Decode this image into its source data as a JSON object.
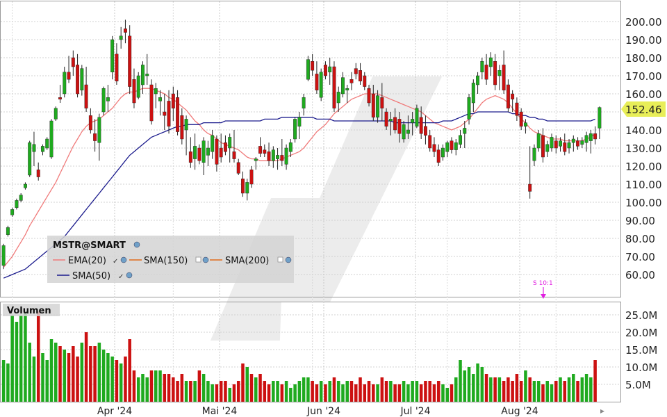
{
  "chart_data": [
    {
      "type": "candlestick",
      "title": "MSTR@SMART",
      "xlabel": "",
      "ylabel": "",
      "ylim": [
        51,
        205
      ],
      "y_ticks": [
        "200.00",
        "190.00",
        "180.00",
        "170.00",
        "160.00",
        "150.00",
        "140.00",
        "130.00",
        "120.00",
        "110.00",
        "100.00",
        "90.00",
        "80.00",
        "70.00",
        "60.00"
      ],
      "x_ticks": [
        "Apr '24",
        "Mai '24",
        "Jun '24",
        "Jul '24",
        "Aug '24"
      ],
      "last_price": "152.46",
      "last_price_value": 152.46,
      "colors": {
        "up": "#1faa1f",
        "down": "#cc1111",
        "ema20": "#f07a7a",
        "sma50": "#1a1a8c",
        "sma150": "#e06a1a",
        "sma200": "#e06a1a",
        "last_price_bg": "#e8ee58"
      },
      "legend": [
        {
          "label": "EMA(20)"
        },
        {
          "label": "SMA(150)"
        },
        {
          "label": "SMA(200)"
        },
        {
          "label": "SMA(50)"
        }
      ],
      "split_annotation": "S 10:1",
      "ohlc": [
        [
          65,
          77,
          63,
          76
        ],
        [
          82,
          87,
          81,
          86
        ],
        [
          93,
          97,
          92,
          96
        ],
        [
          97,
          102,
          96,
          101
        ],
        [
          101,
          105,
          100,
          104
        ],
        [
          108,
          111,
          107,
          110
        ],
        [
          115,
          134,
          114,
          133
        ],
        [
          128,
          139,
          120,
          132
        ],
        [
          118,
          122,
          112,
          114
        ],
        [
          128,
          132,
          126,
          131
        ],
        [
          130,
          136,
          129,
          135
        ],
        [
          125,
          146,
          124,
          145
        ],
        [
          146,
          153,
          145,
          152
        ],
        [
          158,
          165,
          155,
          157
        ],
        [
          160,
          175,
          158,
          172
        ],
        [
          172,
          181,
          166,
          168
        ],
        [
          180,
          184,
          170,
          175
        ],
        [
          176,
          182,
          158,
          160
        ],
        [
          162,
          176,
          159,
          174
        ],
        [
          165,
          175,
          150,
          152
        ],
        [
          148,
          152,
          138,
          140
        ],
        [
          138,
          146,
          128,
          134
        ],
        [
          133,
          149,
          123,
          147
        ],
        [
          150,
          164,
          148,
          163
        ],
        [
          156,
          165,
          150,
          158
        ],
        [
          172,
          192,
          168,
          190
        ],
        [
          182,
          188,
          165,
          167
        ],
        [
          190,
          197,
          185,
          192
        ],
        [
          196,
          201,
          188,
          194
        ],
        [
          192,
          198,
          160,
          164
        ],
        [
          168,
          174,
          152,
          155
        ],
        [
          158,
          172,
          157,
          170
        ],
        [
          165,
          178,
          160,
          176
        ],
        [
          170,
          182,
          165,
          171
        ],
        [
          165,
          168,
          143,
          145
        ],
        [
          160,
          166,
          152,
          163
        ],
        [
          156,
          162,
          148,
          158
        ],
        [
          150,
          160,
          140,
          148
        ],
        [
          156,
          162,
          138,
          142
        ],
        [
          160,
          164,
          145,
          152
        ],
        [
          158,
          162,
          137,
          139
        ],
        [
          148,
          152,
          132,
          135
        ],
        [
          140,
          148,
          126,
          146
        ],
        [
          128,
          136,
          119,
          122
        ],
        [
          124,
          138,
          118,
          131
        ],
        [
          130,
          132,
          121,
          123
        ],
        [
          122,
          136,
          115,
          134
        ],
        [
          126,
          134,
          120,
          130
        ],
        [
          128,
          140,
          124,
          137
        ],
        [
          135,
          137,
          117,
          121
        ],
        [
          130,
          138,
          122,
          125
        ],
        [
          133,
          137,
          126,
          128
        ],
        [
          130,
          138,
          122,
          136
        ],
        [
          128,
          140,
          122,
          124
        ],
        [
          122,
          124,
          115,
          116
        ],
        [
          113,
          117,
          103,
          105
        ],
        [
          105,
          113,
          101,
          111
        ],
        [
          118,
          120,
          108,
          110
        ],
        [
          123,
          125,
          118,
          124
        ],
        [
          131,
          136,
          125,
          127
        ],
        [
          129,
          132,
          125,
          127
        ],
        [
          128,
          133,
          120,
          123
        ],
        [
          123,
          131,
          119,
          129
        ],
        [
          124,
          130,
          118,
          126
        ],
        [
          126,
          135,
          120,
          123
        ],
        [
          121,
          132,
          118,
          130
        ],
        [
          128,
          135,
          125,
          133
        ],
        [
          135,
          147,
          133,
          146
        ],
        [
          142,
          150,
          135,
          147
        ],
        [
          152,
          160,
          148,
          158
        ],
        [
          168,
          181,
          167,
          179
        ],
        [
          178,
          182,
          170,
          173
        ],
        [
          171,
          178,
          160,
          162
        ],
        [
          158,
          174,
          156,
          172
        ],
        [
          176,
          178,
          168,
          170
        ],
        [
          172,
          180,
          165,
          175
        ],
        [
          175,
          178,
          150,
          152
        ],
        [
          155,
          164,
          150,
          161
        ],
        [
          160,
          172,
          158,
          169
        ],
        [
          162,
          165,
          155,
          163
        ],
        [
          168,
          172,
          162,
          166
        ],
        [
          174,
          177,
          168,
          171
        ],
        [
          173,
          177,
          165,
          167
        ],
        [
          170,
          172,
          162,
          164
        ],
        [
          163,
          165,
          153,
          155
        ],
        [
          160,
          165,
          145,
          147
        ],
        [
          147,
          162,
          144,
          159
        ],
        [
          158,
          166,
          145,
          152
        ],
        [
          150,
          152,
          140,
          142
        ],
        [
          145,
          150,
          137,
          146
        ],
        [
          147,
          152,
          138,
          140
        ],
        [
          146,
          150,
          133,
          138
        ],
        [
          135,
          145,
          133,
          143
        ],
        [
          138,
          148,
          135,
          140
        ],
        [
          144,
          150,
          137,
          146
        ],
        [
          142,
          154,
          141,
          152
        ],
        [
          147,
          153,
          135,
          138
        ],
        [
          142,
          148,
          132,
          137
        ],
        [
          137,
          140,
          128,
          130
        ],
        [
          132,
          136,
          125,
          128
        ],
        [
          129,
          132,
          120,
          122
        ],
        [
          125,
          132,
          123,
          130
        ],
        [
          128,
          134,
          125,
          133
        ],
        [
          134,
          136,
          127,
          129
        ],
        [
          129,
          135,
          126,
          133
        ],
        [
          132,
          140,
          130,
          137
        ],
        [
          138,
          145,
          130,
          141
        ],
        [
          146,
          160,
          143,
          158
        ],
        [
          155,
          168,
          150,
          166
        ],
        [
          165,
          172,
          160,
          170
        ],
        [
          172,
          180,
          168,
          178
        ],
        [
          176,
          182,
          165,
          168
        ],
        [
          175,
          183,
          170,
          180
        ],
        [
          178,
          182,
          162,
          165
        ],
        [
          170,
          176,
          162,
          173
        ],
        [
          176,
          184,
          160,
          162
        ],
        [
          165,
          168,
          150,
          152
        ],
        [
          160,
          162,
          150,
          157
        ],
        [
          155,
          158,
          145,
          148
        ],
        [
          150,
          152,
          140,
          142
        ],
        [
          142,
          146,
          138,
          144
        ],
        [
          110,
          131,
          102,
          106
        ],
        [
          123,
          132,
          120,
          130
        ],
        [
          130,
          140,
          128,
          138
        ],
        [
          137,
          141,
          122,
          125
        ],
        [
          128,
          134,
          125,
          132
        ],
        [
          130,
          138,
          128,
          136
        ],
        [
          134,
          137,
          127,
          130
        ],
        [
          131,
          136,
          128,
          134
        ],
        [
          133,
          138,
          126,
          128
        ],
        [
          130,
          135,
          127,
          133
        ],
        [
          133,
          137,
          128,
          135
        ],
        [
          134,
          136,
          129,
          131
        ],
        [
          132,
          136,
          130,
          134
        ],
        [
          133,
          139,
          128,
          137
        ],
        [
          134,
          140,
          127,
          138
        ],
        [
          138,
          142,
          132,
          135
        ],
        [
          141,
          153,
          135,
          152.46
        ]
      ],
      "ema20": [
        64,
        67,
        70,
        74,
        78,
        82,
        87,
        91,
        95,
        99,
        103,
        107,
        111,
        116,
        121,
        126,
        131,
        135,
        139,
        142,
        144,
        145,
        146,
        148,
        150,
        152,
        155,
        158,
        160,
        161,
        161,
        162,
        163,
        163,
        163,
        162,
        161,
        160,
        158,
        157,
        155,
        153,
        151,
        148,
        145,
        143,
        140,
        138,
        137,
        135,
        133,
        132,
        131,
        130,
        129,
        127,
        125,
        124,
        124,
        123,
        123,
        123,
        123,
        123,
        124,
        125,
        126,
        127,
        128,
        130,
        133,
        136,
        139,
        141,
        143,
        146,
        149,
        151,
        153,
        155,
        157,
        158,
        159,
        160,
        160,
        160,
        160,
        159,
        158,
        157,
        156,
        155,
        154,
        153,
        152,
        151,
        150,
        148,
        146,
        144,
        143,
        142,
        141,
        140,
        141,
        142,
        144,
        146,
        149,
        152,
        155,
        157,
        158,
        159,
        158,
        157,
        155,
        152,
        149,
        146,
        144,
        141,
        139,
        138,
        137,
        136,
        135,
        135,
        135,
        134,
        134,
        134,
        134,
        134,
        135,
        136,
        138
      ],
      "sma50": [
        58,
        59,
        60,
        61,
        62,
        63,
        65,
        67,
        69,
        71,
        73,
        75,
        77,
        79,
        81,
        84,
        87,
        90,
        93,
        96,
        99,
        102,
        105,
        108,
        111,
        114,
        117,
        120,
        123,
        126,
        128,
        130,
        132,
        134,
        136,
        137,
        138,
        139,
        140,
        141,
        142,
        142,
        143,
        143,
        143,
        143,
        144,
        144,
        144,
        144,
        144,
        145,
        145,
        145,
        145,
        145,
        145,
        145,
        145,
        145,
        146,
        146,
        146,
        146,
        147,
        147,
        147,
        147,
        147,
        147,
        147,
        147,
        146,
        146,
        146,
        146,
        145,
        145,
        145,
        145,
        145,
        145,
        145,
        145,
        145,
        145,
        145,
        145,
        145,
        145,
        144,
        144,
        144,
        144,
        144,
        144,
        144,
        144,
        144,
        144,
        144,
        145,
        145,
        145,
        146,
        147,
        148,
        149,
        149,
        150,
        150,
        150,
        150,
        150,
        150,
        150,
        150,
        149,
        149,
        148,
        148,
        147,
        147,
        146,
        146,
        145,
        145,
        145,
        145,
        145,
        145,
        145,
        145,
        145,
        145,
        145,
        146
      ]
    },
    {
      "type": "bar",
      "title": "Volumen",
      "xlabel": "",
      "ylabel": "",
      "ylim": [
        0,
        27
      ],
      "y_ticks": [
        "25.0M",
        "20.0M",
        "15.0M",
        "10.0M",
        "5.0M"
      ],
      "x_ticks": [
        "Apr '24",
        "Mai '24",
        "Jun '24",
        "Jul '24",
        "Aug '24"
      ],
      "values": [
        12,
        11,
        25,
        23,
        25,
        26,
        17,
        13,
        26,
        14,
        12,
        18,
        17,
        16,
        15,
        14,
        16,
        13,
        17,
        20,
        16,
        16,
        17,
        15,
        14,
        13,
        12,
        11,
        13,
        18,
        9,
        7,
        8,
        7,
        9,
        9,
        9,
        8,
        8,
        7,
        6,
        8,
        6,
        6,
        6,
        9,
        8,
        6,
        5,
        5,
        6,
        6,
        4,
        5,
        6,
        11,
        10,
        8,
        7,
        8,
        6,
        5,
        6,
        6,
        5,
        6,
        4,
        5,
        6,
        7,
        7,
        6,
        5,
        6,
        5,
        6,
        7,
        6,
        5,
        6,
        6,
        5,
        7,
        5,
        6,
        5,
        5,
        7,
        6,
        6,
        5,
        5,
        6,
        5,
        6,
        6,
        5,
        6,
        6,
        5,
        6,
        5,
        4,
        5,
        7,
        12,
        9,
        10,
        8,
        11,
        10,
        8,
        7,
        7,
        7,
        6,
        7,
        6,
        8,
        6,
        9,
        7,
        6,
        6,
        5,
        6,
        5,
        6,
        7,
        6,
        7,
        8,
        6,
        7,
        8,
        7,
        12
      ]
    }
  ]
}
